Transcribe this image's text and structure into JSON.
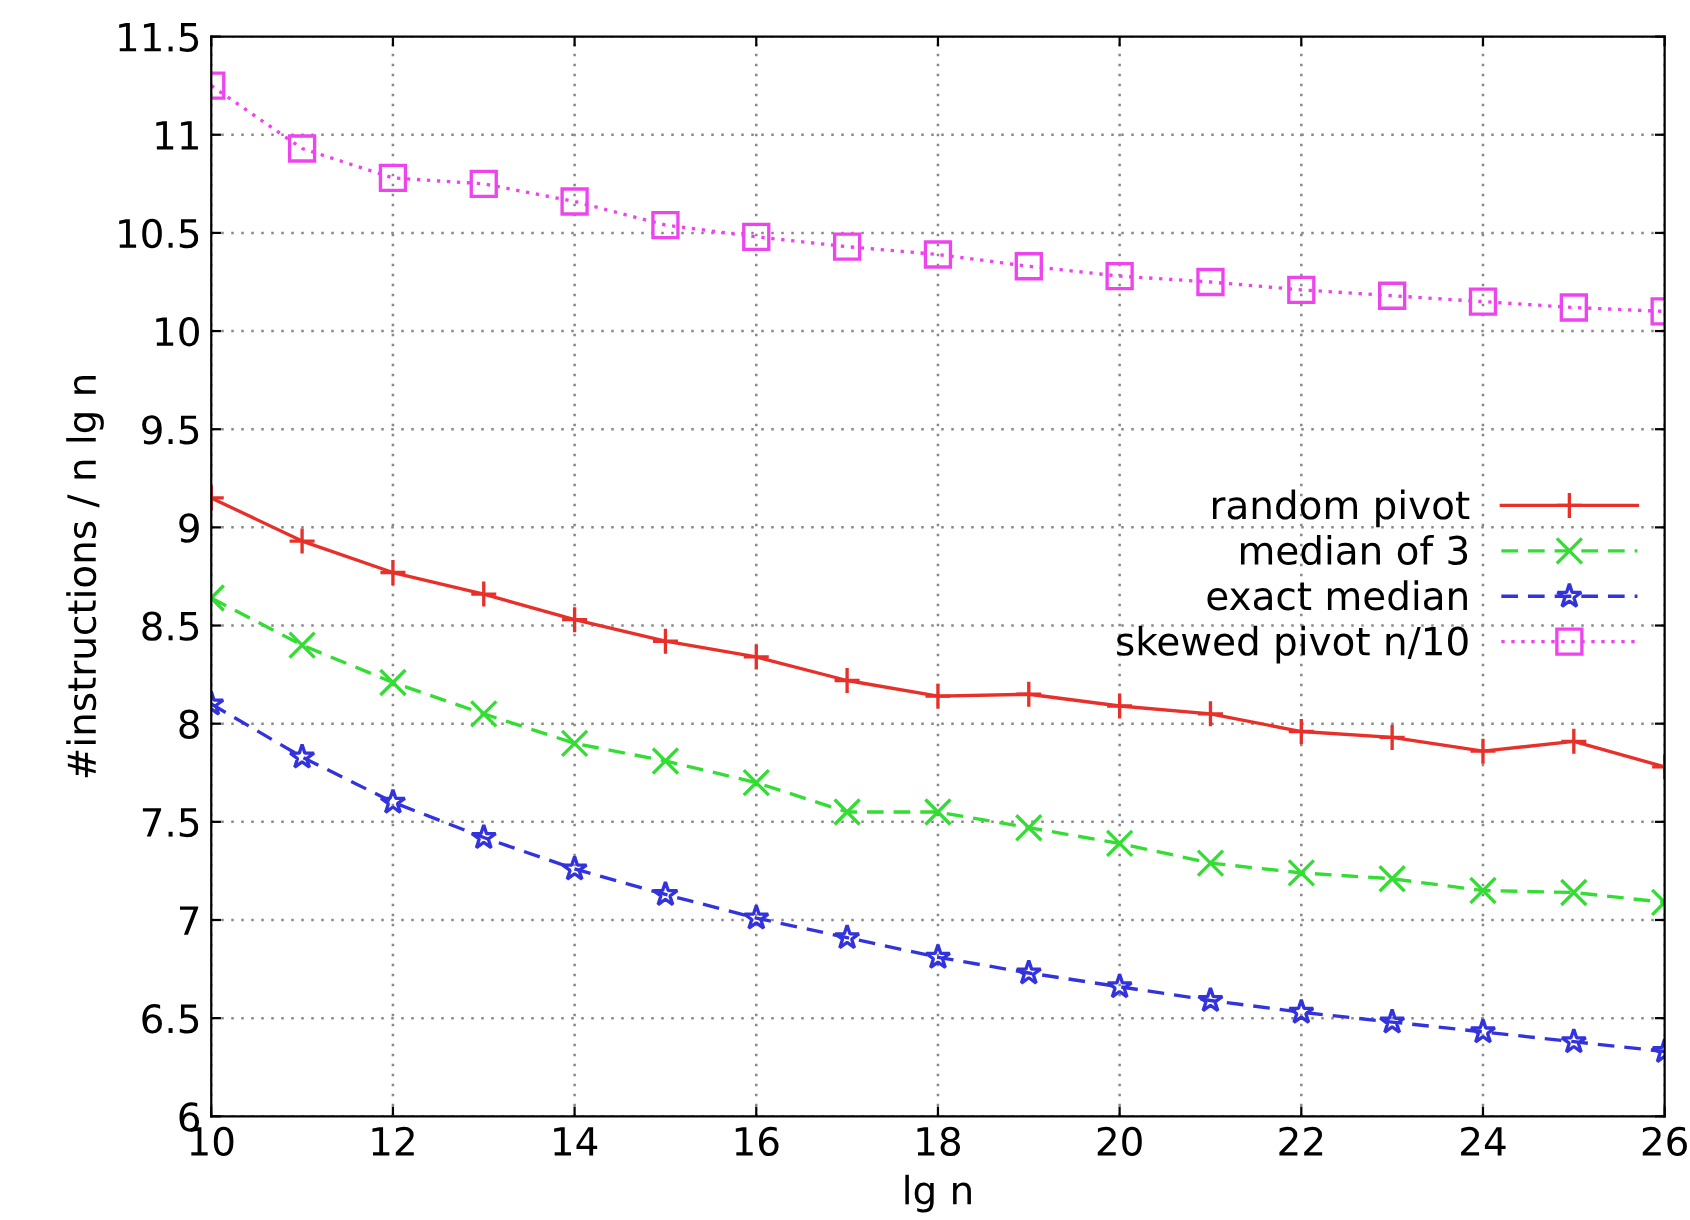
{
  "chart_data": {
    "type": "line",
    "xlabel": "lg n",
    "ylabel": "#instructions / n lg n",
    "x": [
      10,
      11,
      12,
      13,
      14,
      15,
      16,
      17,
      18,
      19,
      20,
      21,
      22,
      23,
      24,
      25,
      26
    ],
    "series": [
      {
        "name": "random pivot",
        "color": "#e8302a",
        "marker": "plus",
        "line_style": "solid",
        "values": [
          9.15,
          8.93,
          8.77,
          8.66,
          8.53,
          8.42,
          8.34,
          8.22,
          8.14,
          8.15,
          8.09,
          8.05,
          7.96,
          7.93,
          7.86,
          7.91,
          7.78
        ]
      },
      {
        "name": "median of 3",
        "color": "#33dd33",
        "marker": "cross",
        "line_style": "dashed",
        "values": [
          8.64,
          8.4,
          8.21,
          8.05,
          7.9,
          7.81,
          7.7,
          7.55,
          7.55,
          7.47,
          7.39,
          7.29,
          7.24,
          7.21,
          7.15,
          7.14,
          7.09
        ]
      },
      {
        "name": "exact median",
        "color": "#3333dd",
        "marker": "star",
        "line_style": "dashed",
        "values": [
          8.1,
          7.83,
          7.6,
          7.42,
          7.26,
          7.13,
          7.01,
          6.91,
          6.81,
          6.73,
          6.66,
          6.59,
          6.53,
          6.48,
          6.43,
          6.38,
          6.33
        ]
      },
      {
        "name": "skewed pivot n/10",
        "color": "#ee44ee",
        "marker": "square",
        "line_style": "dotted",
        "values": [
          11.25,
          10.93,
          10.78,
          10.75,
          10.66,
          10.54,
          10.48,
          10.43,
          10.39,
          10.33,
          10.28,
          10.25,
          10.21,
          10.18,
          10.15,
          10.12,
          10.1
        ]
      }
    ],
    "xlim": [
      10,
      26
    ],
    "xticks": [
      10,
      12,
      14,
      16,
      18,
      20,
      22,
      24,
      26
    ],
    "ylim": [
      6,
      11.5
    ],
    "yticks": [
      6,
      6.5,
      7,
      7.5,
      8,
      8.5,
      9,
      9.5,
      10,
      10.5,
      11,
      11.5
    ],
    "grid": true,
    "legend": "center right"
  }
}
